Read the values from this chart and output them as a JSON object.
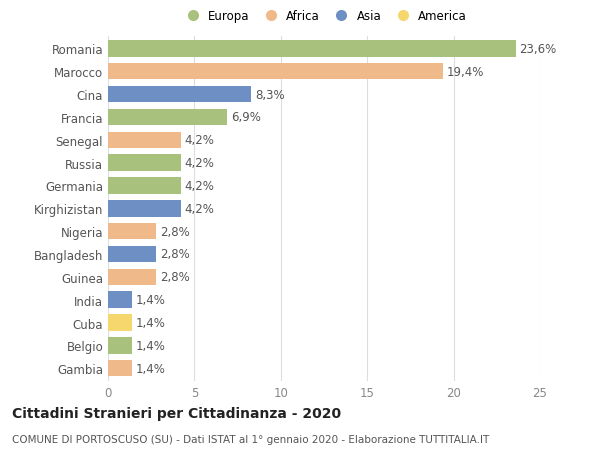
{
  "categories": [
    "Romania",
    "Marocco",
    "Cina",
    "Francia",
    "Senegal",
    "Russia",
    "Germania",
    "Kirghizistan",
    "Nigeria",
    "Bangladesh",
    "Guinea",
    "India",
    "Cuba",
    "Belgio",
    "Gambia"
  ],
  "values": [
    23.6,
    19.4,
    8.3,
    6.9,
    4.2,
    4.2,
    4.2,
    4.2,
    2.8,
    2.8,
    2.8,
    1.4,
    1.4,
    1.4,
    1.4
  ],
  "labels": [
    "23,6%",
    "19,4%",
    "8,3%",
    "6,9%",
    "4,2%",
    "4,2%",
    "4,2%",
    "4,2%",
    "2,8%",
    "2,8%",
    "2,8%",
    "1,4%",
    "1,4%",
    "1,4%",
    "1,4%"
  ],
  "colors": [
    "#a8c17c",
    "#f0b98a",
    "#6e8fc4",
    "#a8c17c",
    "#f0b98a",
    "#a8c17c",
    "#a8c17c",
    "#6e8fc4",
    "#f0b98a",
    "#6e8fc4",
    "#f0b98a",
    "#6e8fc4",
    "#f5d76e",
    "#a8c17c",
    "#f0b98a"
  ],
  "legend_labels": [
    "Europa",
    "Africa",
    "Asia",
    "America"
  ],
  "legend_colors": [
    "#a8c17c",
    "#f0b98a",
    "#6e8fc4",
    "#f5d76e"
  ],
  "title": "Cittadini Stranieri per Cittadinanza - 2020",
  "subtitle": "COMUNE DI PORTOSCUSO (SU) - Dati ISTAT al 1° gennaio 2020 - Elaborazione TUTTITALIA.IT",
  "xlim": [
    0,
    25
  ],
  "xticks": [
    0,
    5,
    10,
    15,
    20,
    25
  ],
  "background_color": "#ffffff",
  "grid_color": "#dddddd",
  "bar_height": 0.72,
  "label_fontsize": 8.5,
  "tick_fontsize": 8.5,
  "title_fontsize": 10,
  "subtitle_fontsize": 7.5
}
